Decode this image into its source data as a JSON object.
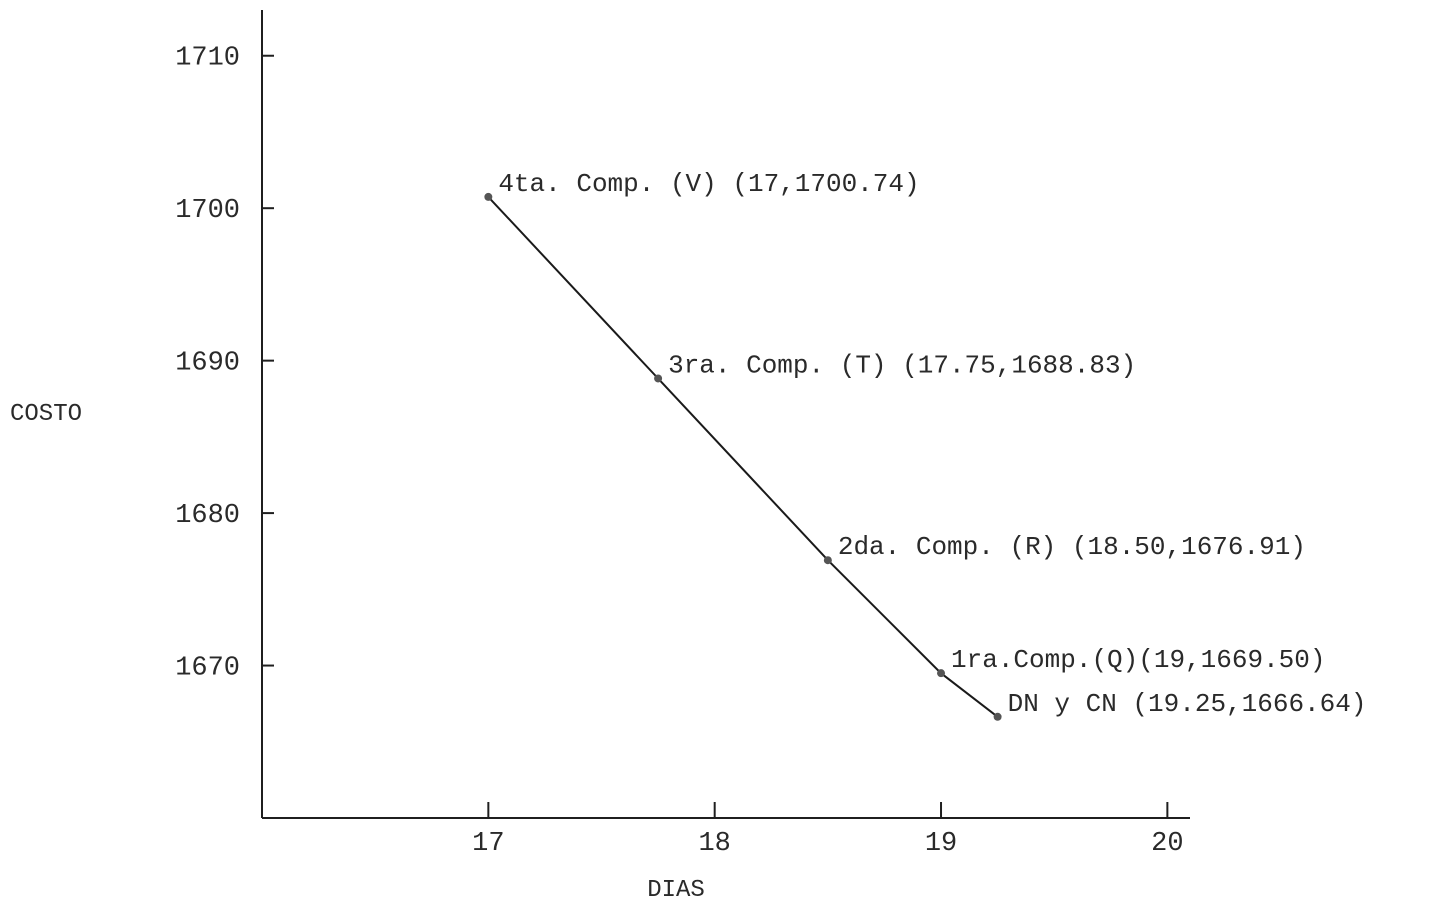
{
  "chart_data": {
    "type": "line",
    "title": "",
    "xlabel": "DIAS",
    "ylabel": "COSTO",
    "xlim": [
      16,
      20.1
    ],
    "ylim": [
      1660,
      1713
    ],
    "grid": false,
    "legend": "none",
    "x_ticks": [
      17,
      18,
      19,
      20
    ],
    "y_ticks": [
      1670,
      1680,
      1690,
      1700,
      1710
    ],
    "series": [
      {
        "points": [
          {
            "x": 17,
            "y": 1700.74,
            "label": "4ta. Comp. (V) (17,1700.74)"
          },
          {
            "x": 17.75,
            "y": 1688.83,
            "label": "3ra. Comp. (T) (17.75,1688.83)"
          },
          {
            "x": 18.5,
            "y": 1676.91,
            "label": "2da. Comp. (R) (18.50,1676.91)"
          },
          {
            "x": 19,
            "y": 1669.5,
            "label": "1ra.Comp.(Q)(19,1669.50)"
          },
          {
            "x": 19.25,
            "y": 1666.64,
            "label": "DN y CN (19.25,1666.64)"
          }
        ]
      }
    ]
  }
}
